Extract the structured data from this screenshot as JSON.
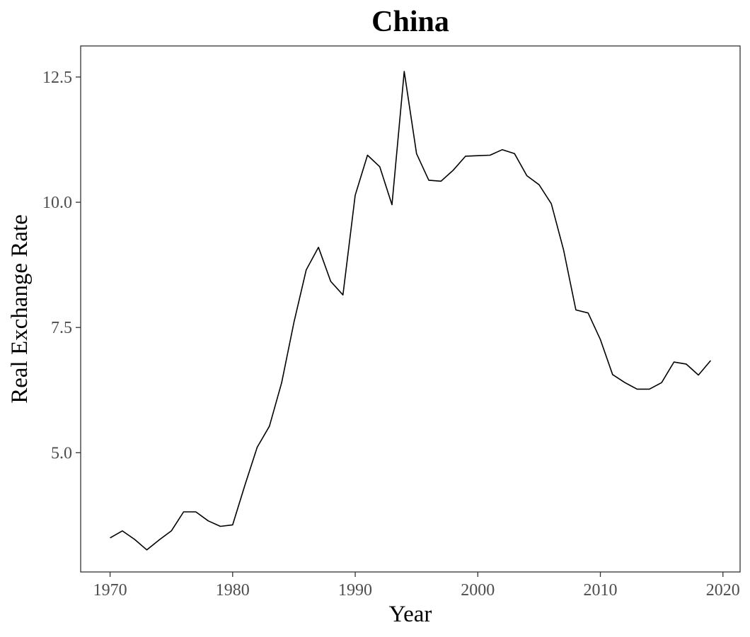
{
  "chart_data": {
    "type": "line",
    "title": "China",
    "xlabel": "Year",
    "ylabel": "Real Exchange Rate",
    "xlim": [
      1967.6,
      2021.4
    ],
    "ylim": [
      2.62,
      13.12
    ],
    "xticks": [
      1970,
      1980,
      1990,
      2000,
      2010,
      2020
    ],
    "yticks": [
      5.0,
      7.5,
      10.0,
      12.5
    ],
    "ytick_labels": [
      "5.0",
      "7.5",
      "10.0",
      "12.5"
    ],
    "grid": false,
    "legend": "none",
    "series": [
      {
        "color": "#000000",
        "x": [
          1970,
          1971,
          1972,
          1973,
          1974,
          1975,
          1976,
          1977,
          1978,
          1979,
          1980,
          1981,
          1982,
          1983,
          1984,
          1985,
          1986,
          1987,
          1988,
          1989,
          1990,
          1991,
          1992,
          1993,
          1994,
          1995,
          1996,
          1997,
          1998,
          1999,
          2000,
          2001,
          2002,
          2003,
          2004,
          2005,
          2006,
          2007,
          2008,
          2009,
          2010,
          2011,
          2012,
          2013,
          2014,
          2015,
          2016,
          2017,
          2018,
          2019
        ],
        "values": [
          3.3,
          3.44,
          3.27,
          3.06,
          3.26,
          3.44,
          3.82,
          3.82,
          3.64,
          3.53,
          3.56,
          4.35,
          5.11,
          5.53,
          6.4,
          7.6,
          8.65,
          9.1,
          8.42,
          8.15,
          10.14,
          10.94,
          10.71,
          9.95,
          12.61,
          10.97,
          10.44,
          10.42,
          10.64,
          10.92,
          10.93,
          10.94,
          11.05,
          10.97,
          10.53,
          10.35,
          9.97,
          9.05,
          7.85,
          7.79,
          7.26,
          6.56,
          6.4,
          6.27,
          6.27,
          6.4,
          6.81,
          6.77,
          6.55,
          6.84
        ]
      }
    ]
  }
}
